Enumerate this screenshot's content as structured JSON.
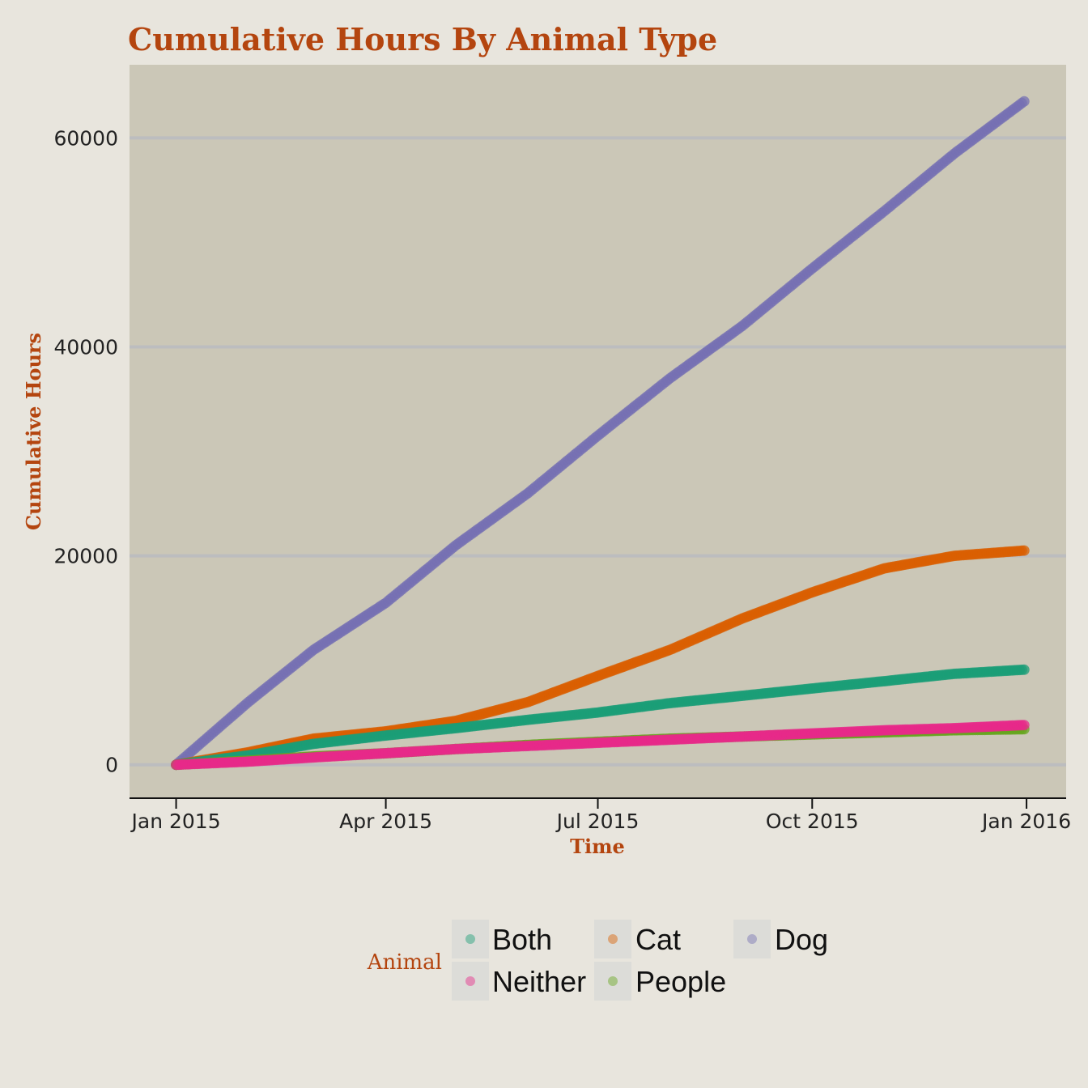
{
  "chart_data": {
    "type": "scatter",
    "title": "Cumulative Hours By Animal Type",
    "xlabel": "Time",
    "ylabel": "Cumulative Hours",
    "x_tick_labels": [
      "Jan 2015",
      "Apr 2015",
      "Jul 2015",
      "Oct 2015",
      "Jan 2016"
    ],
    "x_ticks": [
      "2015-01-01",
      "2015-04-01",
      "2015-07-01",
      "2015-10-01",
      "2016-01-01"
    ],
    "xlim": [
      "2014-12-12",
      "2016-01-18"
    ],
    "y_ticks": [
      0,
      20000,
      40000,
      60000
    ],
    "ylim": [
      -3200,
      67000
    ],
    "grid": "horizontal major only",
    "legend": {
      "title": "Animal",
      "position": "bottom",
      "entries": [
        "Both",
        "Cat",
        "Dog",
        "Neither",
        "People"
      ]
    },
    "colors": {
      "Both": "#1b9e77",
      "Cat": "#d95f02",
      "Dog": "#7570b3",
      "Neither": "#e7298a",
      "People": "#66a61e"
    },
    "panel_background": "#cbc7b7",
    "series": [
      {
        "name": "Dog",
        "points": [
          [
            "2015-01-01",
            0
          ],
          [
            "2015-02-01",
            6000
          ],
          [
            "2015-03-01",
            11000
          ],
          [
            "2015-04-01",
            15500
          ],
          [
            "2015-05-01",
            21000
          ],
          [
            "2015-06-01",
            26000
          ],
          [
            "2015-07-01",
            31500
          ],
          [
            "2015-08-01",
            37000
          ],
          [
            "2015-09-01",
            42000
          ],
          [
            "2015-10-01",
            47500
          ],
          [
            "2015-11-01",
            53000
          ],
          [
            "2015-12-01",
            58500
          ],
          [
            "2015-12-31",
            63500
          ]
        ]
      },
      {
        "name": "Cat",
        "points": [
          [
            "2015-01-01",
            0
          ],
          [
            "2015-02-01",
            1200
          ],
          [
            "2015-03-01",
            2500
          ],
          [
            "2015-04-01",
            3200
          ],
          [
            "2015-05-01",
            4200
          ],
          [
            "2015-06-01",
            6000
          ],
          [
            "2015-07-01",
            8500
          ],
          [
            "2015-08-01",
            11000
          ],
          [
            "2015-09-01",
            14000
          ],
          [
            "2015-10-01",
            16500
          ],
          [
            "2015-11-01",
            18800
          ],
          [
            "2015-12-01",
            20000
          ],
          [
            "2015-12-31",
            20500
          ]
        ]
      },
      {
        "name": "Both",
        "points": [
          [
            "2015-01-01",
            0
          ],
          [
            "2015-02-01",
            900
          ],
          [
            "2015-03-01",
            2000
          ],
          [
            "2015-04-01",
            2800
          ],
          [
            "2015-05-01",
            3500
          ],
          [
            "2015-06-01",
            4300
          ],
          [
            "2015-07-01",
            5000
          ],
          [
            "2015-08-01",
            5900
          ],
          [
            "2015-09-01",
            6600
          ],
          [
            "2015-10-01",
            7300
          ],
          [
            "2015-11-01",
            8000
          ],
          [
            "2015-12-01",
            8700
          ],
          [
            "2015-12-31",
            9100
          ]
        ]
      },
      {
        "name": "People",
        "points": [
          [
            "2015-01-01",
            0
          ],
          [
            "2015-02-01",
            400
          ],
          [
            "2015-03-01",
            800
          ],
          [
            "2015-04-01",
            1100
          ],
          [
            "2015-05-01",
            1500
          ],
          [
            "2015-06-01",
            1900
          ],
          [
            "2015-07-01",
            2200
          ],
          [
            "2015-08-01",
            2500
          ],
          [
            "2015-09-01",
            2700
          ],
          [
            "2015-10-01",
            2900
          ],
          [
            "2015-11-01",
            3100
          ],
          [
            "2015-12-01",
            3300
          ],
          [
            "2015-12-31",
            3400
          ]
        ]
      },
      {
        "name": "Neither",
        "points": [
          [
            "2015-01-01",
            0
          ],
          [
            "2015-02-01",
            300
          ],
          [
            "2015-03-01",
            700
          ],
          [
            "2015-04-01",
            1100
          ],
          [
            "2015-05-01",
            1500
          ],
          [
            "2015-06-01",
            1800
          ],
          [
            "2015-07-01",
            2100
          ],
          [
            "2015-08-01",
            2400
          ],
          [
            "2015-09-01",
            2700
          ],
          [
            "2015-10-01",
            3000
          ],
          [
            "2015-11-01",
            3300
          ],
          [
            "2015-12-01",
            3500
          ],
          [
            "2015-12-31",
            3800
          ]
        ]
      }
    ]
  }
}
